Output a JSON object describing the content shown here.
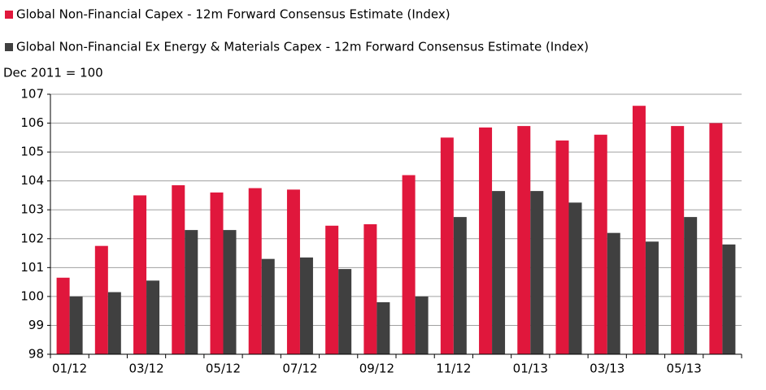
{
  "chart_data": {
    "type": "bar",
    "subtitle": "Dec 2011 = 100",
    "categories": [
      "01/12",
      null,
      "03/12",
      null,
      "05/12",
      null,
      "07/12",
      null,
      "09/12",
      null,
      "11/12",
      null,
      "01/13",
      null,
      "03/13",
      null,
      "05/13",
      null
    ],
    "series": [
      {
        "name": "Global Non-Financial Capex - 12m Forward Consensus Estimate (Index)",
        "color": "#e0173c",
        "values": [
          100.65,
          101.75,
          103.5,
          103.85,
          103.6,
          103.75,
          103.7,
          102.45,
          102.5,
          104.2,
          105.5,
          105.85,
          105.9,
          105.4,
          105.6,
          106.6,
          105.9,
          106.0
        ]
      },
      {
        "name": "Global Non-Financial Ex Energy & Materials Capex - 12m Forward Consensus Estimate (Index)",
        "color": "#404040",
        "values": [
          100.0,
          100.15,
          100.55,
          102.3,
          102.3,
          101.3,
          101.35,
          100.95,
          99.8,
          100.0,
          102.75,
          103.65,
          103.65,
          103.25,
          102.2,
          101.9,
          102.75,
          101.8
        ]
      }
    ],
    "ylim": [
      98,
      107
    ],
    "yticks": [
      98,
      99,
      100,
      101,
      102,
      103,
      104,
      105,
      106,
      107
    ],
    "grid": true
  }
}
